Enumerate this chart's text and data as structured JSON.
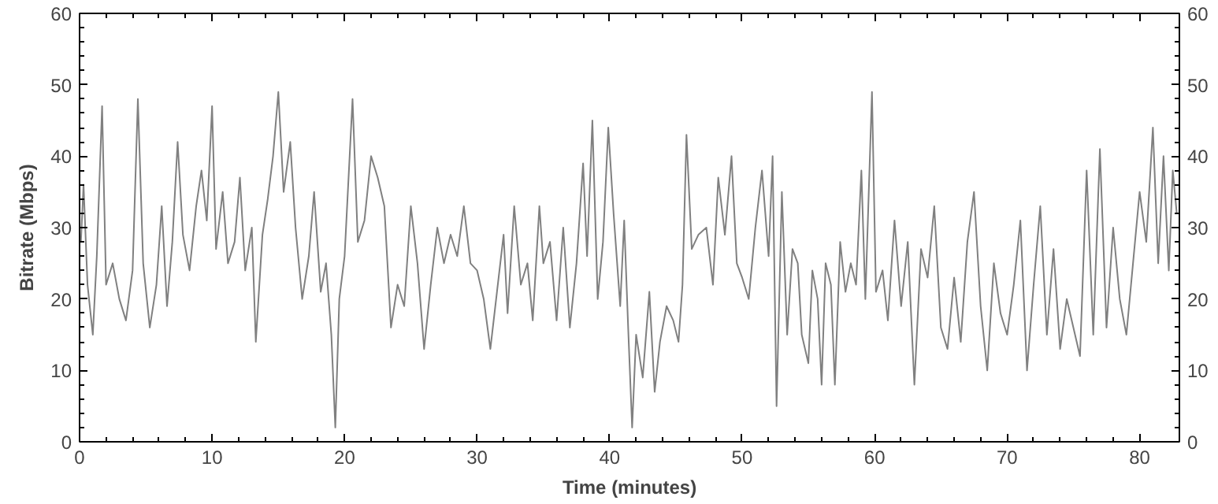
{
  "chart_data": {
    "type": "line",
    "xlabel": "Time (minutes)",
    "ylabel": "Bitrate (Mbps)",
    "xlim": [
      0,
      83
    ],
    "xticks": [
      0,
      10,
      20,
      30,
      40,
      50,
      60,
      70,
      80
    ],
    "ylim": [
      0,
      60
    ],
    "yticks": [
      0,
      10,
      20,
      30,
      40,
      50,
      60
    ],
    "y2lim": [
      0,
      60
    ],
    "y2ticks": [
      0,
      10,
      20,
      30,
      40,
      50,
      60
    ],
    "grid": false,
    "marker": "none",
    "line_style": "solid",
    "series": [
      {
        "color": "#808080",
        "x": [
          0.1,
          0.3,
          0.6,
          1,
          1.3,
          1.7,
          2,
          2.5,
          3,
          3.5,
          4,
          4.4,
          4.8,
          5.3,
          5.8,
          6.2,
          6.6,
          7,
          7.4,
          7.8,
          8.3,
          8.8,
          9.2,
          9.6,
          10,
          10.3,
          10.8,
          11.2,
          11.7,
          12.1,
          12.5,
          13,
          13.3,
          13.8,
          14.2,
          14.6,
          15,
          15.4,
          15.9,
          16.3,
          16.8,
          17.3,
          17.7,
          18.2,
          18.6,
          19,
          19.3,
          19.6,
          20,
          20.3,
          20.6,
          21,
          21.5,
          22,
          22.5,
          23,
          23.5,
          24,
          24.5,
          25,
          25.5,
          26,
          26.5,
          27,
          27.5,
          28,
          28.5,
          29,
          29.5,
          30,
          30.5,
          31,
          31.5,
          32,
          32.3,
          32.8,
          33.3,
          33.8,
          34.2,
          34.7,
          35,
          35.5,
          36,
          36.5,
          37,
          37.5,
          38,
          38.3,
          38.7,
          39.1,
          39.5,
          39.9,
          40.3,
          40.8,
          41.1,
          41.4,
          41.7,
          42,
          42.5,
          43,
          43.4,
          43.8,
          44.3,
          44.8,
          45.2,
          45.5,
          45.8,
          46.2,
          46.7,
          47.3,
          47.8,
          48.2,
          48.7,
          49.2,
          49.6,
          50,
          50.5,
          51,
          51.5,
          52,
          52.3,
          52.6,
          53,
          53.4,
          53.8,
          54.2,
          54.5,
          55,
          55.3,
          55.7,
          56,
          56.3,
          56.7,
          57,
          57.4,
          57.8,
          58.2,
          58.6,
          59,
          59.3,
          59.8,
          60.1,
          60.6,
          61,
          61.5,
          62,
          62.5,
          63,
          63.5,
          64,
          64.5,
          65,
          65.5,
          66,
          66.5,
          67,
          67.5,
          68,
          68.5,
          69,
          69.5,
          70,
          70.5,
          71,
          71.5,
          72,
          72.5,
          73,
          73.5,
          74,
          74.5,
          75,
          75.5,
          76,
          76.5,
          77,
          77.5,
          78,
          78.5,
          79,
          79.5,
          80,
          80.5,
          81,
          81.4,
          81.8,
          82.2,
          82.5,
          82.8
        ],
        "values": [
          28,
          36,
          22,
          15,
          26,
          47,
          22,
          25,
          20,
          17,
          24,
          48,
          25,
          16,
          22,
          33,
          19,
          28,
          42,
          29,
          24,
          33,
          38,
          31,
          47,
          27,
          35,
          25,
          28,
          37,
          24,
          30,
          14,
          29,
          34,
          40,
          49,
          35,
          42,
          30,
          20,
          26,
          35,
          21,
          25,
          15,
          2,
          20,
          26,
          37,
          48,
          28,
          31,
          40,
          37,
          33,
          16,
          22,
          19,
          33,
          25,
          13,
          22,
          30,
          25,
          29,
          26,
          33,
          25,
          24,
          20,
          13,
          21,
          29,
          18,
          33,
          22,
          25,
          17,
          33,
          25,
          28,
          17,
          30,
          16,
          25,
          39,
          26,
          45,
          20,
          28,
          44,
          32,
          19,
          31,
          16,
          2,
          15,
          9,
          21,
          7,
          14,
          19,
          17,
          14,
          22,
          43,
          27,
          29,
          30,
          22,
          37,
          29,
          40,
          25,
          23,
          20,
          30,
          38,
          26,
          40,
          5,
          35,
          15,
          27,
          25,
          15,
          11,
          24,
          20,
          8,
          25,
          22,
          8,
          28,
          21,
          25,
          22,
          38,
          20,
          49,
          21,
          24,
          17,
          31,
          19,
          28,
          8,
          27,
          23,
          33,
          16,
          13,
          23,
          14,
          28,
          35,
          19,
          10,
          25,
          18,
          15,
          22,
          31,
          10,
          22,
          33,
          15,
          27,
          13,
          20,
          16,
          12,
          38,
          15,
          41,
          16,
          30,
          20,
          15,
          25,
          35,
          28,
          44,
          25,
          40,
          24,
          38,
          32
        ]
      }
    ]
  }
}
